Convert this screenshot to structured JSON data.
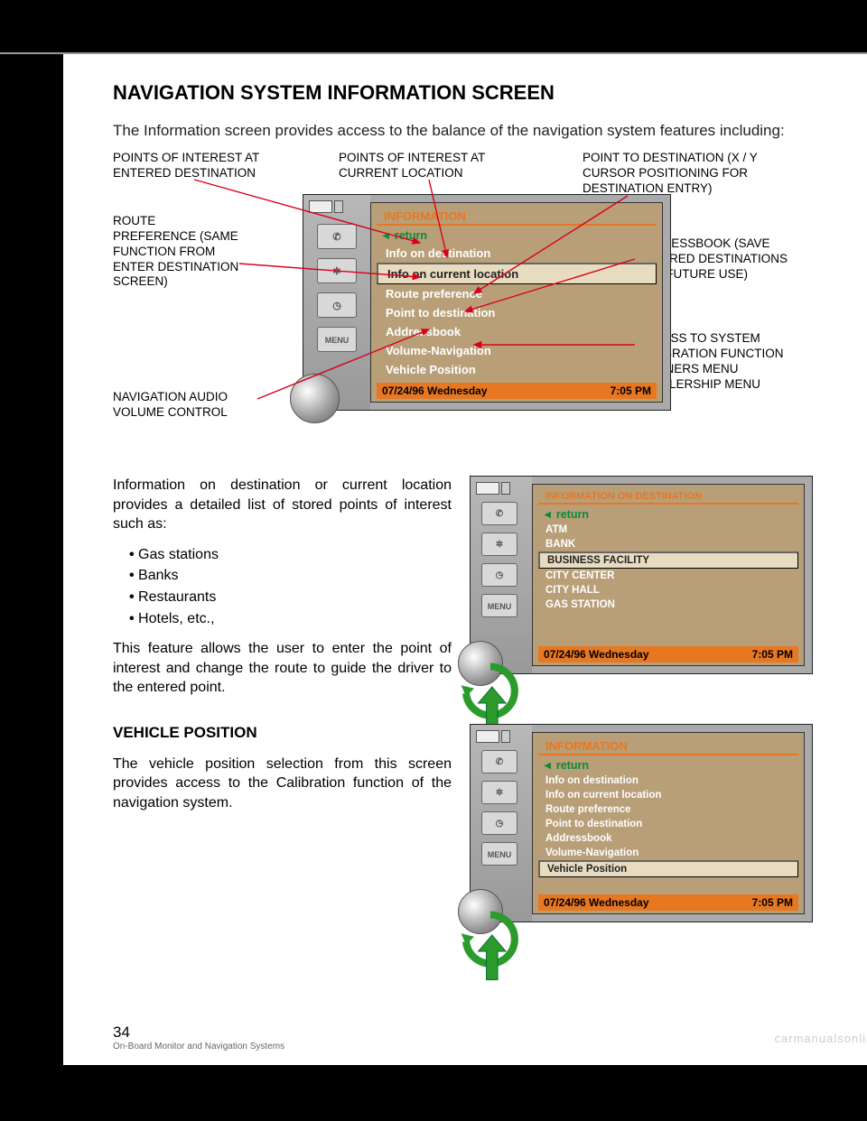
{
  "heading": "NAVIGATION SYSTEM INFORMATION SCREEN",
  "intro": "The Information screen provides access to the balance of the navigation system features including:",
  "callouts": {
    "poi_dest": "POINTS OF INTEREST AT ENTERED DESTINATION",
    "poi_cur": "POINTS OF INTEREST AT CURRENT LOCATION",
    "point_to": "POINT TO DESTINATION (X / Y CURSOR POSITIONING FOR DESTINATION ENTRY)",
    "route_pref": "ROUTE PREFERENCE (SAME FUNCTION FROM ENTER DESTINATION SCREEN)",
    "addr": "ADDRESSBOOK (SAVE ENTERED DESTINATIONS FOR FUTURE USE)",
    "cal": "ACCESS TO SYSTEM CALIBRATION FUNCTION\n- OWNERS MENU\n- DEALERSHIP MENU",
    "vol": "NAVIGATION AUDIO VOLUME CONTROL"
  },
  "screen1": {
    "title": "INFORMATION",
    "return": "return",
    "items": [
      "Info on destination",
      "Info on current location",
      "Route preference",
      "Point to destination",
      "Addressbook",
      "Volume-Navigation",
      "Vehicle Position"
    ],
    "selected": 1,
    "status_date": "07/24/96  Wednesday",
    "status_time": "7:05 PM",
    "menu_btn": "MENU"
  },
  "body1": "Information on destination or current location provides a detailed list of stored points of interest such as:",
  "poi_list": [
    "Gas stations",
    "Banks",
    "Restaurants",
    "Hotels, etc.,"
  ],
  "body2": "This feature allows the user to enter the point of interest and change the route to guide the driver to the entered point.",
  "screen2": {
    "title": "INFORMATION ON DESTINATION",
    "return": "return",
    "items": [
      "ATM",
      "BANK",
      "BUSINESS FACILITY",
      "CITY CENTER",
      "CITY HALL",
      "GAS STATION"
    ],
    "selected": 2,
    "status_date": "07/24/96  Wednesday",
    "status_time": "7:05 PM",
    "menu_btn": "MENU"
  },
  "vp_heading": "VEHICLE POSITION",
  "vp_body": "The vehicle position selection from this screen provides access to the Calibration function of the navigation system.",
  "screen3": {
    "title": "INFORMATION",
    "return": "return",
    "items": [
      "Info on destination",
      "Info on current location",
      "Route preference",
      "Point to destination",
      "Addressbook",
      "Volume-Navigation",
      "Vehicle Position"
    ],
    "selected": 6,
    "status_date": "07/24/96  Wednesday",
    "status_time": "7:05 PM",
    "menu_btn": "MENU"
  },
  "page_number": "34",
  "footer_text": "On-Board Monitor and Navigation Systems",
  "watermark": "carmanualsonline.info",
  "colors": {
    "panel_bg": "#b89f78",
    "orange": "#e87722",
    "green": "#0a8a3a",
    "arrow_green": "#2c9b2c",
    "line_red": "#d9001b"
  }
}
